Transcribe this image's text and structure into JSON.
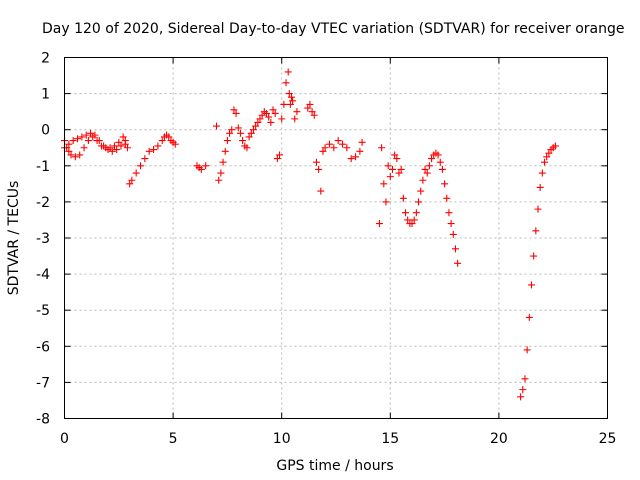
{
  "chart_data": {
    "type": "scatter",
    "title": "Day 120 of 2020, Sidereal Day-to-day VTEC variation (SDTVAR) for receiver orange",
    "xlabel": "GPS time / hours",
    "ylabel": "SDTVAR / TECUs",
    "xlim": [
      0,
      25
    ],
    "ylim": [
      -8,
      2
    ],
    "xticks": [
      0,
      5,
      10,
      15,
      20,
      25
    ],
    "xtick_labels": [
      "0",
      "5",
      "10",
      "15",
      "20",
      "25"
    ],
    "yticks": [
      2,
      1,
      0,
      -1,
      -2,
      -3,
      -4,
      -5,
      -6,
      -7,
      -8
    ],
    "ytick_labels": [
      "2",
      "1",
      "0",
      "-1",
      "-2",
      "-3",
      "-4",
      "-5",
      "-6",
      "-7",
      "-8"
    ],
    "grid": true,
    "marker": "+",
    "series": [
      {
        "name": "SDTVAR",
        "color": "#ff0000",
        "x": [
          0.0,
          0.1,
          0.2,
          0.3,
          0.5,
          0.7,
          0.9,
          1.1,
          1.3,
          1.5,
          1.7,
          1.9,
          2.1,
          2.3,
          2.5,
          2.7,
          2.8,
          0.0,
          0.2,
          0.4,
          0.6,
          0.8,
          1.0,
          1.2,
          1.4,
          1.6,
          1.8,
          2.0,
          2.2,
          2.4,
          2.6,
          2.8,
          2.9,
          3.0,
          3.1,
          3.3,
          3.5,
          3.7,
          3.9,
          4.1,
          4.3,
          4.5,
          4.6,
          4.7,
          4.8,
          4.9,
          5.0,
          5.1,
          6.1,
          6.2,
          6.3,
          6.5,
          7.0,
          7.1,
          7.2,
          7.3,
          7.4,
          7.5,
          7.6,
          7.7,
          7.8,
          7.9,
          8.0,
          8.1,
          8.2,
          8.3,
          8.4,
          8.5,
          8.6,
          8.7,
          8.8,
          8.9,
          9.0,
          9.1,
          9.2,
          9.3,
          9.4,
          9.5,
          9.6,
          9.7,
          9.8,
          9.9,
          10.0,
          10.1,
          10.2,
          10.3,
          10.35,
          10.4,
          10.45,
          10.5,
          10.6,
          10.7,
          11.2,
          11.3,
          11.4,
          11.5,
          11.6,
          11.7,
          11.8,
          11.9,
          12.0,
          12.2,
          12.4,
          12.6,
          12.8,
          13.0,
          13.2,
          13.4,
          13.6,
          13.7,
          14.5,
          14.6,
          14.7,
          14.8,
          14.9,
          15.0,
          15.1,
          15.2,
          15.3,
          15.4,
          15.5,
          15.6,
          15.7,
          15.8,
          15.9,
          16.0,
          16.1,
          16.2,
          16.3,
          16.4,
          16.5,
          16.6,
          16.7,
          16.8,
          16.9,
          17.0,
          17.1,
          17.2,
          17.3,
          17.4,
          17.5,
          17.6,
          17.7,
          17.8,
          17.9,
          18.0,
          18.1,
          21.0,
          21.1,
          21.2,
          21.3,
          21.4,
          21.5,
          21.6,
          21.7,
          21.8,
          21.9,
          22.0,
          22.1,
          22.2,
          22.3,
          22.4,
          22.5,
          22.6
        ],
        "y": [
          -0.3,
          -0.5,
          -0.6,
          -0.7,
          -0.75,
          -0.7,
          -0.5,
          -0.3,
          -0.2,
          -0.3,
          -0.45,
          -0.5,
          -0.5,
          -0.45,
          -0.35,
          -0.2,
          -0.3,
          -0.5,
          -0.4,
          -0.3,
          -0.25,
          -0.2,
          -0.15,
          -0.1,
          -0.15,
          -0.3,
          -0.45,
          -0.55,
          -0.6,
          -0.55,
          -0.45,
          -0.4,
          -0.5,
          -1.5,
          -1.4,
          -1.2,
          -1.0,
          -0.8,
          -0.6,
          -0.55,
          -0.45,
          -0.3,
          -0.2,
          -0.15,
          -0.2,
          -0.3,
          -0.35,
          -0.4,
          -1.0,
          -1.05,
          -1.1,
          -1.0,
          0.1,
          -1.4,
          -1.2,
          -0.9,
          -0.6,
          -0.3,
          -0.1,
          0.0,
          0.55,
          0.45,
          0.05,
          -0.1,
          -0.3,
          -0.45,
          -0.5,
          -0.2,
          -0.1,
          0.0,
          0.1,
          0.2,
          0.3,
          0.4,
          0.5,
          0.45,
          0.35,
          0.2,
          0.55,
          0.45,
          -0.8,
          -0.7,
          0.3,
          0.7,
          1.3,
          1.6,
          1.0,
          0.7,
          0.9,
          0.8,
          0.3,
          0.5,
          0.6,
          0.7,
          0.5,
          0.4,
          -0.9,
          -1.1,
          -1.7,
          -0.6,
          -0.5,
          -0.4,
          -0.5,
          -0.3,
          -0.4,
          -0.5,
          -0.8,
          -0.75,
          -0.6,
          -0.35,
          -2.6,
          -0.5,
          -1.5,
          -2.0,
          -1.0,
          -1.3,
          -1.1,
          -0.7,
          -0.8,
          -1.2,
          -1.1,
          -1.9,
          -2.3,
          -2.5,
          -2.6,
          -2.6,
          -2.5,
          -2.3,
          -2.0,
          -1.7,
          -1.4,
          -1.1,
          -1.2,
          -1.0,
          -0.8,
          -0.7,
          -0.65,
          -0.7,
          -0.9,
          -1.1,
          -1.5,
          -1.9,
          -2.3,
          -2.6,
          -2.9,
          -3.3,
          -3.7,
          -7.4,
          -7.2,
          -6.9,
          -6.1,
          -5.2,
          -4.3,
          -3.5,
          -2.8,
          -2.2,
          -1.6,
          -1.2,
          -0.9,
          -0.75,
          -0.65,
          -0.55,
          -0.5,
          -0.45
        ]
      }
    ]
  }
}
